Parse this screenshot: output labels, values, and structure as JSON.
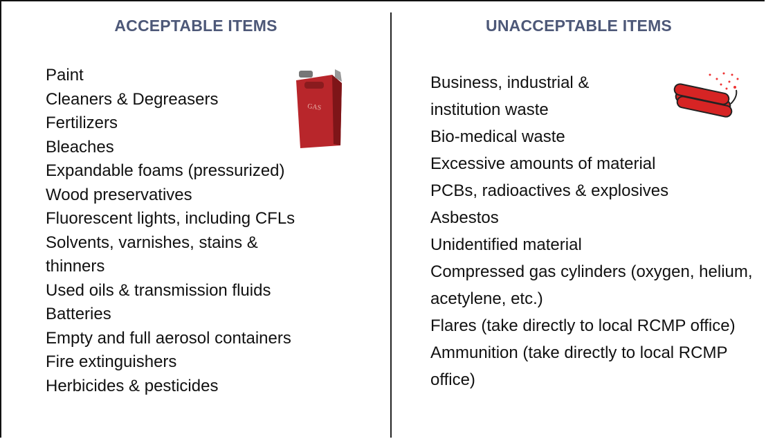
{
  "acceptable": {
    "title": "ACCEPTABLE ITEMS",
    "items": [
      "Paint",
      "Cleaners & Degreasers",
      "Fertilizers",
      "Bleaches",
      "Expandable foams (pressurized)",
      "Wood preservatives",
      "Fluorescent lights, including CFLs",
      "Solvents, varnishes, stains & thinners",
      "Used oils & transmission fluids",
      "Batteries",
      "Empty and full aerosol containers",
      "Fire extinguishers",
      "Herbicides & pesticides"
    ]
  },
  "unacceptable": {
    "title": "UNACCEPTABLE ITEMS",
    "items": [
      "Business, industrial & institution waste",
      "Bio-medical waste",
      "Excessive amounts of material",
      "PCBs, radioactives & explosives",
      "Asbestos",
      "Unidentified material",
      "Compressed gas cylinders (oxygen, helium, acetylene, etc.)",
      "Flares (take directly to local RCMP office)",
      "Ammunition (take directly to local RCMP office)"
    ]
  }
}
